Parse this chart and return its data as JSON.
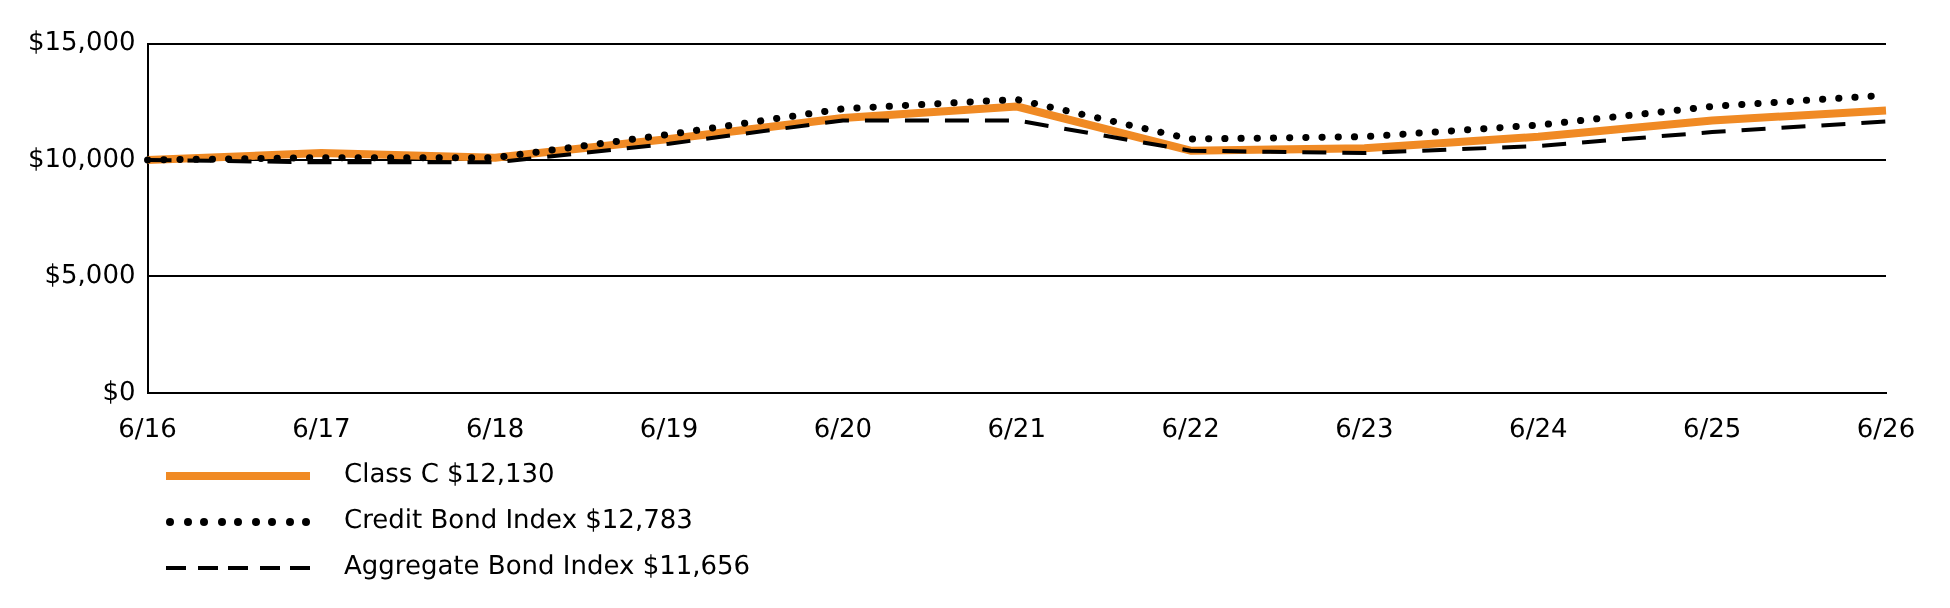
{
  "chart_data": {
    "type": "line",
    "categories": [
      "6/16",
      "6/17",
      "6/18",
      "6/19",
      "6/20",
      "6/21",
      "6/22",
      "6/23",
      "6/24",
      "6/25",
      "6/26"
    ],
    "series": [
      {
        "name": "Class C $12,130",
        "color": "#f08a24",
        "line_style": "solid",
        "values": [
          10000,
          10300,
          10100,
          10900,
          11800,
          12300,
          10400,
          10500,
          11000,
          11700,
          12130
        ]
      },
      {
        "name": "Credit Bond Index $12,783",
        "color": "#000000",
        "line_style": "dotted",
        "values": [
          10000,
          10100,
          10100,
          11100,
          12200,
          12600,
          10900,
          11000,
          11500,
          12300,
          12783
        ]
      },
      {
        "name": "Aggregate Bond Index $11,656",
        "color": "#000000",
        "line_style": "dashed",
        "values": [
          10000,
          9900,
          9900,
          10700,
          11700,
          11700,
          10400,
          10300,
          10600,
          11200,
          11656
        ]
      }
    ],
    "ylim": [
      0,
      15000
    ],
    "yticks": [
      {
        "value": 0,
        "label": "$0"
      },
      {
        "value": 5000,
        "label": "$5,000"
      },
      {
        "value": 10000,
        "label": "$10,000"
      },
      {
        "value": 15000,
        "label": "$15,000"
      }
    ],
    "grid": "y",
    "legend": "bottom",
    "marker": "none"
  }
}
